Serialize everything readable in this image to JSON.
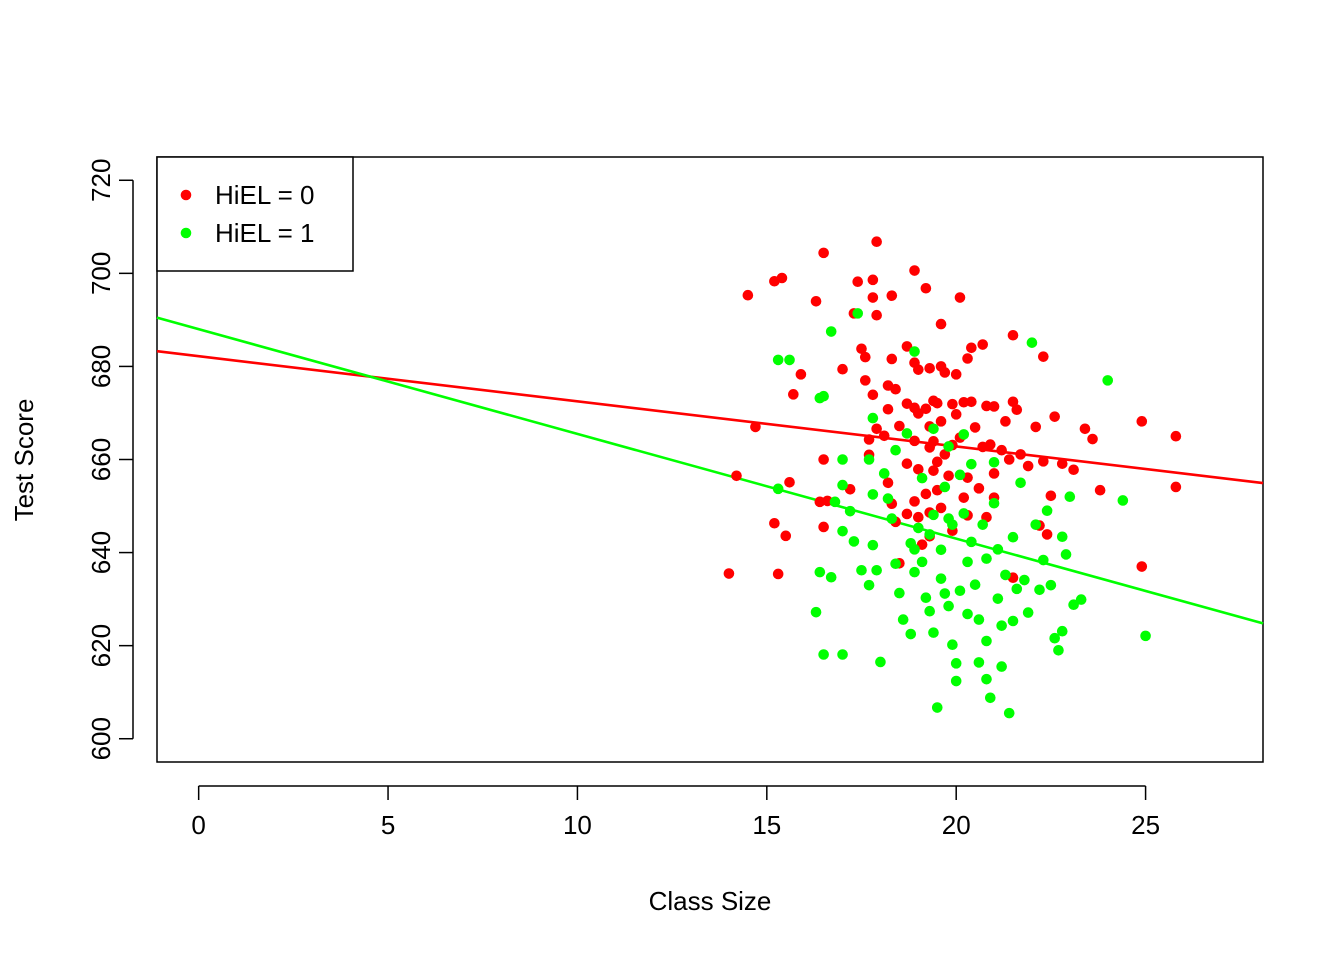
{
  "chart_data": {
    "type": "scatter",
    "title": "",
    "xlabel": "Class Size",
    "ylabel": "Test Score",
    "xlim": [
      -1.1,
      28.1
    ],
    "ylim": [
      595,
      725
    ],
    "x_ticks": [
      0,
      5,
      10,
      15,
      20,
      25
    ],
    "y_ticks": [
      600,
      620,
      640,
      660,
      680,
      700,
      720
    ],
    "grid": false,
    "legend_position": "top-left",
    "colors": {
      "HiEL = 0": "#ff0000",
      "HiEL = 1": "#00ff00"
    },
    "series": [
      {
        "name": "HiEL = 0",
        "color": "#ff0000",
        "points": [
          [
            14.0,
            635.5
          ],
          [
            14.2,
            656.5
          ],
          [
            14.5,
            695.3
          ],
          [
            14.7,
            667.0
          ],
          [
            15.2,
            698.3
          ],
          [
            15.3,
            635.4
          ],
          [
            15.2,
            646.3
          ],
          [
            15.4,
            699.0
          ],
          [
            15.5,
            643.6
          ],
          [
            15.6,
            655.1
          ],
          [
            15.7,
            674.0
          ],
          [
            15.9,
            678.3
          ],
          [
            16.3,
            694.0
          ],
          [
            16.4,
            650.9
          ],
          [
            16.5,
            704.4
          ],
          [
            16.5,
            660.0
          ],
          [
            16.5,
            645.5
          ],
          [
            16.6,
            651.1
          ],
          [
            17.0,
            679.4
          ],
          [
            17.2,
            653.6
          ],
          [
            17.3,
            691.4
          ],
          [
            17.4,
            698.2
          ],
          [
            17.5,
            683.8
          ],
          [
            17.6,
            682.0
          ],
          [
            17.6,
            677.0
          ],
          [
            17.7,
            664.3
          ],
          [
            17.7,
            661.0
          ],
          [
            17.8,
            698.6
          ],
          [
            17.8,
            694.8
          ],
          [
            17.8,
            673.9
          ],
          [
            17.9,
            706.8
          ],
          [
            17.9,
            691.0
          ],
          [
            17.9,
            666.6
          ],
          [
            18.1,
            665.1
          ],
          [
            18.2,
            675.9
          ],
          [
            18.2,
            670.8
          ],
          [
            18.2,
            655.0
          ],
          [
            18.3,
            650.5
          ],
          [
            18.3,
            695.2
          ],
          [
            18.3,
            681.6
          ],
          [
            18.4,
            675.1
          ],
          [
            18.4,
            646.6
          ],
          [
            18.5,
            637.7
          ],
          [
            18.5,
            667.2
          ],
          [
            18.7,
            684.3
          ],
          [
            18.7,
            672.0
          ],
          [
            18.7,
            659.1
          ],
          [
            18.7,
            648.3
          ],
          [
            18.9,
            700.6
          ],
          [
            18.9,
            680.8
          ],
          [
            18.9,
            671.1
          ],
          [
            18.9,
            664.0
          ],
          [
            18.9,
            651.0
          ],
          [
            19.0,
            679.3
          ],
          [
            19.0,
            669.9
          ],
          [
            19.0,
            657.9
          ],
          [
            19.0,
            647.6
          ],
          [
            19.1,
            641.7
          ],
          [
            19.2,
            696.8
          ],
          [
            19.2,
            670.9
          ],
          [
            19.2,
            652.6
          ],
          [
            19.3,
            679.6
          ],
          [
            19.3,
            667.1
          ],
          [
            19.3,
            662.6
          ],
          [
            19.3,
            648.6
          ],
          [
            19.3,
            643.5
          ],
          [
            19.4,
            672.6
          ],
          [
            19.4,
            663.9
          ],
          [
            19.4,
            657.6
          ],
          [
            19.5,
            672.1
          ],
          [
            19.5,
            659.5
          ],
          [
            19.5,
            653.4
          ],
          [
            19.6,
            680.0
          ],
          [
            19.6,
            689.1
          ],
          [
            19.6,
            668.2
          ],
          [
            19.6,
            649.6
          ],
          [
            19.7,
            678.7
          ],
          [
            19.7,
            661.1
          ],
          [
            19.8,
            656.5
          ],
          [
            19.9,
            671.9
          ],
          [
            19.9,
            663.1
          ],
          [
            19.9,
            644.7
          ],
          [
            20.0,
            678.3
          ],
          [
            20.0,
            669.7
          ],
          [
            20.1,
            694.8
          ],
          [
            20.1,
            664.7
          ],
          [
            20.2,
            672.3
          ],
          [
            20.2,
            651.8
          ],
          [
            20.3,
            681.7
          ],
          [
            20.3,
            656.1
          ],
          [
            20.3,
            648.0
          ],
          [
            20.4,
            684.0
          ],
          [
            20.4,
            672.4
          ],
          [
            20.5,
            666.9
          ],
          [
            20.6,
            653.8
          ],
          [
            20.7,
            684.7
          ],
          [
            20.7,
            662.7
          ],
          [
            20.8,
            671.5
          ],
          [
            20.8,
            647.6
          ],
          [
            20.9,
            663.2
          ],
          [
            21.0,
            671.4
          ],
          [
            21.0,
            657.0
          ],
          [
            21.0,
            651.8
          ],
          [
            21.2,
            662.0
          ],
          [
            21.3,
            668.2
          ],
          [
            21.4,
            660.0
          ],
          [
            21.5,
            686.7
          ],
          [
            21.5,
            672.4
          ],
          [
            21.5,
            634.6
          ],
          [
            21.6,
            670.7
          ],
          [
            21.7,
            661.1
          ],
          [
            21.9,
            658.6
          ],
          [
            22.1,
            667.0
          ],
          [
            22.2,
            645.8
          ],
          [
            22.3,
            682.1
          ],
          [
            22.3,
            659.6
          ],
          [
            22.4,
            643.9
          ],
          [
            22.5,
            652.2
          ],
          [
            22.6,
            669.2
          ],
          [
            22.8,
            659.1
          ],
          [
            23.1,
            657.8
          ],
          [
            23.4,
            666.6
          ],
          [
            23.6,
            664.4
          ],
          [
            23.8,
            653.4
          ],
          [
            24.9,
            668.2
          ],
          [
            24.9,
            637.0
          ],
          [
            25.8,
            665.0
          ],
          [
            25.8,
            654.1
          ]
        ],
        "fit": {
          "intercept": 682.2,
          "slope": -0.97
        }
      },
      {
        "name": "HiEL = 1",
        "color": "#00ff00",
        "points": [
          [
            15.3,
            653.7
          ],
          [
            15.3,
            681.4
          ],
          [
            15.6,
            681.4
          ],
          [
            16.3,
            627.2
          ],
          [
            16.4,
            673.2
          ],
          [
            16.4,
            635.8
          ],
          [
            16.5,
            673.6
          ],
          [
            16.5,
            618.1
          ],
          [
            16.7,
            634.7
          ],
          [
            16.7,
            687.5
          ],
          [
            16.8,
            650.9
          ],
          [
            17.0,
            618.1
          ],
          [
            17.0,
            660.0
          ],
          [
            17.0,
            654.5
          ],
          [
            17.0,
            644.6
          ],
          [
            17.2,
            648.9
          ],
          [
            17.3,
            642.4
          ],
          [
            17.4,
            691.4
          ],
          [
            17.5,
            636.2
          ],
          [
            17.7,
            633.0
          ],
          [
            17.7,
            660.0
          ],
          [
            17.8,
            668.9
          ],
          [
            17.8,
            652.5
          ],
          [
            17.8,
            641.6
          ],
          [
            17.9,
            636.2
          ],
          [
            18.0,
            616.5
          ],
          [
            18.1,
            657.0
          ],
          [
            18.2,
            651.6
          ],
          [
            18.3,
            647.3
          ],
          [
            18.4,
            662.0
          ],
          [
            18.4,
            637.6
          ],
          [
            18.5,
            631.3
          ],
          [
            18.6,
            625.6
          ],
          [
            18.7,
            665.6
          ],
          [
            18.8,
            642.0
          ],
          [
            18.8,
            622.5
          ],
          [
            18.9,
            683.2
          ],
          [
            18.9,
            640.7
          ],
          [
            18.9,
            635.8
          ],
          [
            19.0,
            645.3
          ],
          [
            19.1,
            656.0
          ],
          [
            19.1,
            638.0
          ],
          [
            19.2,
            630.3
          ],
          [
            19.3,
            643.9
          ],
          [
            19.3,
            627.4
          ],
          [
            19.4,
            666.6
          ],
          [
            19.4,
            648.1
          ],
          [
            19.4,
            622.8
          ],
          [
            19.5,
            606.7
          ],
          [
            19.6,
            640.6
          ],
          [
            19.6,
            634.4
          ],
          [
            19.7,
            654.1
          ],
          [
            19.7,
            631.2
          ],
          [
            19.8,
            662.8
          ],
          [
            19.8,
            647.3
          ],
          [
            19.8,
            628.5
          ],
          [
            19.9,
            620.2
          ],
          [
            19.9,
            646.0
          ],
          [
            20.0,
            612.4
          ],
          [
            20.0,
            616.2
          ],
          [
            20.1,
            631.8
          ],
          [
            20.1,
            656.7
          ],
          [
            20.2,
            665.4
          ],
          [
            20.2,
            648.4
          ],
          [
            20.3,
            638.0
          ],
          [
            20.3,
            626.8
          ],
          [
            20.4,
            659.0
          ],
          [
            20.4,
            642.3
          ],
          [
            20.5,
            633.1
          ],
          [
            20.6,
            625.6
          ],
          [
            20.6,
            616.4
          ],
          [
            20.7,
            646.0
          ],
          [
            20.8,
            638.7
          ],
          [
            20.8,
            621.0
          ],
          [
            20.8,
            612.8
          ],
          [
            20.9,
            608.8
          ],
          [
            21.0,
            659.4
          ],
          [
            21.0,
            650.6
          ],
          [
            21.1,
            640.7
          ],
          [
            21.1,
            630.1
          ],
          [
            21.2,
            624.3
          ],
          [
            21.2,
            615.5
          ],
          [
            21.3,
            635.2
          ],
          [
            21.4,
            605.5
          ],
          [
            21.5,
            643.3
          ],
          [
            21.5,
            625.3
          ],
          [
            21.6,
            632.2
          ],
          [
            21.7,
            655.0
          ],
          [
            21.8,
            634.1
          ],
          [
            21.9,
            627.1
          ],
          [
            22.0,
            685.1
          ],
          [
            22.1,
            646.0
          ],
          [
            22.2,
            632.0
          ],
          [
            22.3,
            638.4
          ],
          [
            22.4,
            649.0
          ],
          [
            22.5,
            633.0
          ],
          [
            22.6,
            621.6
          ],
          [
            22.7,
            619.0
          ],
          [
            22.8,
            643.4
          ],
          [
            22.8,
            623.1
          ],
          [
            22.9,
            639.6
          ],
          [
            23.0,
            652.0
          ],
          [
            23.1,
            628.8
          ],
          [
            23.3,
            629.9
          ],
          [
            24.0,
            677.0
          ],
          [
            24.4,
            651.2
          ],
          [
            25.0,
            622.1
          ]
        ],
        "fit": {
          "intercept": 688.0,
          "slope": -2.25
        }
      }
    ]
  }
}
